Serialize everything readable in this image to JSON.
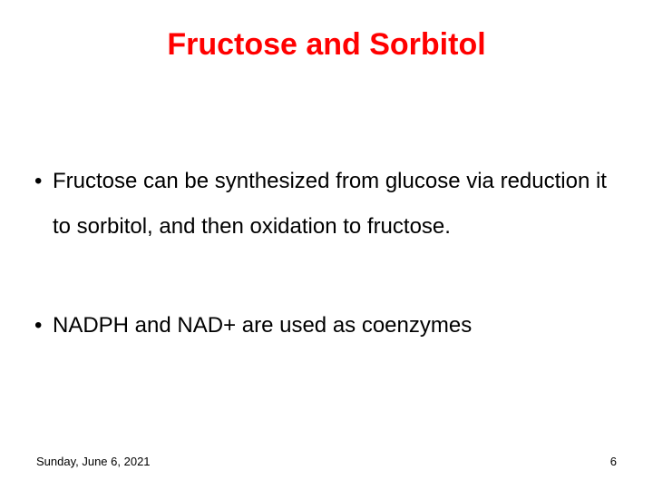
{
  "title": {
    "text": "Fructose and Sorbitol",
    "color": "#ff0000",
    "fontsize": 34,
    "fontweight": "bold"
  },
  "bullets": {
    "items": [
      "Fructose can be synthesized from glucose via reduction it   to sorbitol, and then oxidation to fructose.",
      "NADPH and NAD+ are used as coenzymes"
    ],
    "color": "#000000",
    "fontsize": 24,
    "lineheight": 2.1,
    "bullet_color": "#000000"
  },
  "footer": {
    "date": "Sunday, June 6, 2021",
    "page": "6",
    "color": "#000000",
    "fontsize": 13
  },
  "background_color": "#ffffff",
  "slide_width": 720,
  "slide_height": 540
}
